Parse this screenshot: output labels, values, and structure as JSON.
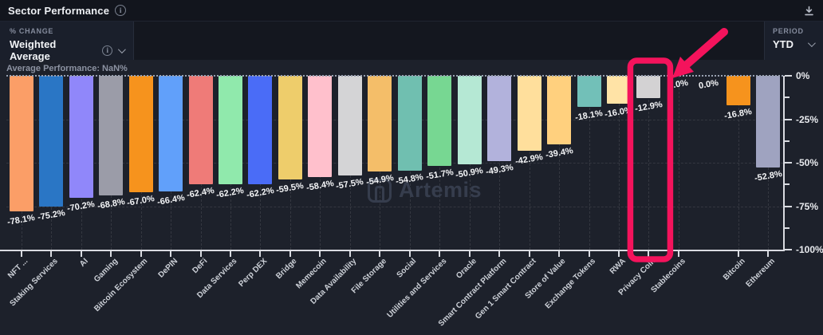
{
  "window": {
    "title": "Sector Performance"
  },
  "toolbar": {
    "metric_label": "% CHANGE",
    "metric_value": "Weighted Average",
    "period_label": "PERIOD",
    "period_value": "YTD"
  },
  "chart_header": {
    "average_note": "Average Performance: NaN%"
  },
  "watermark": {
    "text": "Artemis"
  },
  "icons": {
    "title_info": "info-icon",
    "metric_info": "info-icon",
    "metric_chevron": "chevron-down-icon",
    "period_chevron": "chevron-down-icon",
    "download": "download-icon"
  },
  "colors": {
    "background": "#1D212B",
    "panel": "#14171F",
    "axis": "#D9DBE1",
    "annotation": "#F4135C"
  },
  "chart_data": {
    "type": "bar",
    "title": "Sector Performance",
    "xlabel": "",
    "ylabel": "% change (Weighted Average, YTD)",
    "ylim": [
      -100,
      0
    ],
    "grid": true,
    "y_tick_labels": [
      "0%",
      "-25%",
      "-50%",
      "-75%",
      "-100%"
    ],
    "y_tick_values": [
      0,
      -25,
      -50,
      -75,
      -100
    ],
    "categories": [
      "NFT ...",
      "Staking Services",
      "AI",
      "Gaming",
      "Bitcoin Ecosystem",
      "DePIN",
      "DeFi",
      "Data Services",
      "Perp DEX",
      "Bridge",
      "Memecoin",
      "Data Availability",
      "File Storage",
      "Social",
      "Utilities and Services",
      "Oracle",
      "Smart Contract Platform",
      "Gen 1 Smart Contract",
      "Store of Value",
      "Exchange Tokens",
      "RWA",
      "Privacy Coin",
      "Stablecoins",
      "",
      "Bitcoin",
      "Ethereum"
    ],
    "values": [
      -78.1,
      -75.2,
      -70.2,
      -68.8,
      -67.0,
      -66.4,
      -62.4,
      -62.2,
      -62.2,
      -59.5,
      -58.4,
      -57.5,
      -54.9,
      -54.8,
      -51.7,
      -50.9,
      -49.3,
      -42.9,
      -39.4,
      -18.1,
      -16.0,
      -12.9,
      0.0,
      0.0,
      -16.8,
      -52.8
    ],
    "value_labels": [
      "-78.1%",
      "-75.2%",
      "-70.2%",
      "-68.8%",
      "-67.0%",
      "-66.4%",
      "-62.4%",
      "-62.2%",
      "-62.2%",
      "-59.5%",
      "-58.4%",
      "-57.5%",
      "-54.9%",
      "-54.8%",
      "-51.7%",
      "-50.9%",
      "-49.3%",
      "-42.9%",
      "-39.4%",
      "-18.1%",
      "-16.0%",
      "-12.9%",
      "0.0%",
      "0.0%",
      "-16.8%",
      "-52.8%"
    ],
    "bar_colors": [
      "#FB9E67",
      "#2A76C5",
      "#9087FA",
      "#9B9CA8",
      "#F6931D",
      "#61A0FA",
      "#EF7B78",
      "#90E9AC",
      "#4A6CF7",
      "#EECD6B",
      "#FFC0CC",
      "#D4D4D6",
      "#F4BE69",
      "#70BFB0",
      "#77D792",
      "#B5E8D4",
      "#B2B2DC",
      "#FFDF9C",
      "#FFD07E",
      "#72C0B8",
      "#FFE3A6",
      "#D3D2D3",
      "#D3D2D3",
      "#D3D2D3",
      "#F6931D",
      "#9FA3C0"
    ],
    "legend": null,
    "annotation": {
      "shape": "box-and-arrow",
      "highlight_category": "Privacy Coin",
      "color": "#F4135C"
    }
  }
}
